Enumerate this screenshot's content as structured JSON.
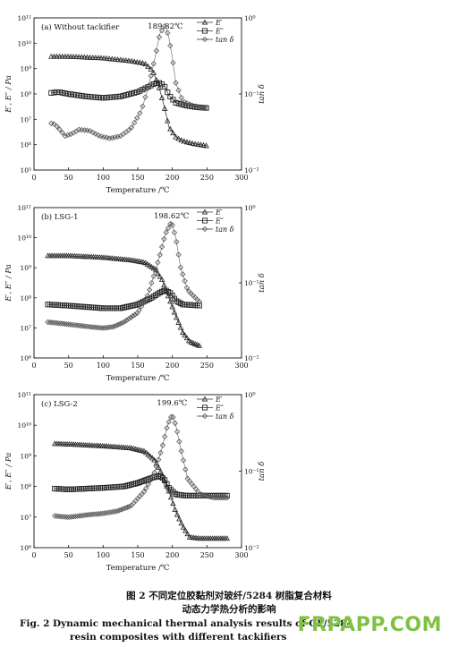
{
  "chart_data": [
    {
      "type": "line",
      "panel_label": "(a) Without tackifier",
      "peak_label": "189.82℃",
      "xlabel": "Temperature /℃",
      "ylabel_left": "E′, E″ / Pa",
      "ylabel_right": "tan δ",
      "xlim": [
        0,
        300
      ],
      "xticks": [
        "0",
        "50",
        "100",
        "150",
        "200",
        "250",
        "300"
      ],
      "ylim_left_exp": [
        5,
        11
      ],
      "yticks_left": [
        "10⁵",
        "10⁶",
        "10⁷",
        "10⁸",
        "10⁹",
        "10¹⁰",
        "10¹¹"
      ],
      "ylim_right_exp": [
        -2,
        0
      ],
      "yticks_right": [
        "10⁻²",
        "10⁻¹",
        "10⁰"
      ],
      "scale": "log",
      "legend": [
        "E′",
        "E″",
        "tan δ"
      ],
      "legend_position": "top-right",
      "series": [
        {
          "name": "E′",
          "marker": "triangle",
          "axis": "left",
          "x": [
            25,
            50,
            100,
            140,
            160,
            172,
            180,
            188,
            195,
            205,
            215,
            230,
            250
          ],
          "y": [
            3000000000.0,
            3000000000.0,
            2600000000.0,
            2000000000.0,
            1600000000.0,
            800000000.0,
            220000000.0,
            35000000.0,
            5000000.0,
            2000000.0,
            1400000.0,
            1100000.0,
            900000.0
          ]
        },
        {
          "name": "E″",
          "marker": "square",
          "axis": "left",
          "x": [
            25,
            35,
            50,
            75,
            100,
            125,
            150,
            165,
            175,
            180,
            188,
            195,
            205,
            220,
            235,
            250
          ],
          "y": [
            110000000.0,
            120000000.0,
            100000000.0,
            80000000.0,
            70000000.0,
            80000000.0,
            120000000.0,
            190000000.0,
            260000000.0,
            280000000.0,
            220000000.0,
            90000000.0,
            45000000.0,
            35000000.0,
            30000000.0,
            28000000.0
          ]
        },
        {
          "name": "tan δ",
          "marker": "diamond",
          "axis": "right",
          "x": [
            25,
            30,
            35,
            45,
            55,
            65,
            80,
            95,
            110,
            125,
            140,
            155,
            165,
            175,
            182,
            189.82,
            195,
            200,
            205,
            215,
            230,
            250
          ],
          "y": [
            0.041,
            0.04,
            0.036,
            0.028,
            0.03,
            0.034,
            0.033,
            0.028,
            0.026,
            0.028,
            0.035,
            0.06,
            0.12,
            0.3,
            0.62,
            0.8,
            0.55,
            0.3,
            0.14,
            0.08,
            0.07,
            0.065
          ]
        }
      ]
    },
    {
      "type": "line",
      "panel_label": "(b) LSG-1",
      "peak_label": "198.62℃",
      "xlabel": "Temperature /℃",
      "ylabel_left": "E′, E″ / Pa",
      "ylabel_right": "tan δ",
      "xlim": [
        0,
        300
      ],
      "xticks": [
        "0",
        "50",
        "100",
        "150",
        "200",
        "250",
        "300"
      ],
      "ylim_left_exp": [
        6,
        11
      ],
      "yticks_left": [
        "10⁶",
        "10⁷",
        "10⁸",
        "10⁹",
        "10¹⁰",
        "10¹¹"
      ],
      "ylim_right_exp": [
        -2,
        0
      ],
      "yticks_right": [
        "10⁻²",
        "10⁻¹",
        "10⁰"
      ],
      "scale": "log",
      "legend": [
        "E′",
        "E″",
        "tan δ"
      ],
      "legend_position": "top-right",
      "series": [
        {
          "name": "E′",
          "marker": "triangle",
          "axis": "left",
          "x": [
            20,
            50,
            100,
            140,
            160,
            175,
            185,
            195,
            205,
            215,
            225,
            240
          ],
          "y": [
            2500000000.0,
            2500000000.0,
            2200000000.0,
            1800000000.0,
            1500000000.0,
            900000000.0,
            400000000.0,
            100000000.0,
            25000000.0,
            7000000.0,
            3500000.0,
            2500000.0
          ]
        },
        {
          "name": "E″",
          "marker": "square",
          "axis": "left",
          "x": [
            20,
            50,
            100,
            125,
            150,
            170,
            182,
            190,
            198,
            205,
            215,
            240
          ],
          "y": [
            60000000.0,
            55000000.0,
            45000000.0,
            45000000.0,
            60000000.0,
            100000000.0,
            150000000.0,
            180000000.0,
            140000000.0,
            80000000.0,
            60000000.0,
            55000000.0
          ]
        },
        {
          "name": "tan δ",
          "marker": "diamond",
          "axis": "right",
          "x": [
            20,
            50,
            80,
            100,
            115,
            130,
            150,
            165,
            180,
            190,
            198.62,
            205,
            212,
            222,
            240
          ],
          "y": [
            0.03,
            0.028,
            0.026,
            0.025,
            0.026,
            0.03,
            0.04,
            0.07,
            0.2,
            0.45,
            0.65,
            0.4,
            0.16,
            0.08,
            0.055
          ]
        }
      ]
    },
    {
      "type": "line",
      "panel_label": "(c) LSG-2",
      "peak_label": "199.6℃",
      "xlabel": "Temperature /℃",
      "ylabel_left": "E′, E″ / Pa",
      "ylabel_right": "tan δ",
      "xlim": [
        0,
        300
      ],
      "xticks": [
        "0",
        "50",
        "100",
        "150",
        "200",
        "250",
        "300"
      ],
      "ylim_left_exp": [
        6,
        11
      ],
      "yticks_left": [
        "10⁶",
        "10⁷",
        "10⁸",
        "10⁹",
        "10¹⁰",
        "10¹¹"
      ],
      "ylim_right_exp": [
        -2,
        0
      ],
      "yticks_right": [
        "10⁻²",
        "10⁻¹",
        "10⁰"
      ],
      "scale": "log",
      "legend": [
        "E′",
        "E″",
        "tan δ"
      ],
      "legend_position": "top-right",
      "series": [
        {
          "name": "E′",
          "marker": "triangle",
          "axis": "left",
          "x": [
            30,
            50,
            100,
            140,
            160,
            175,
            185,
            195,
            205,
            215,
            225,
            240,
            280
          ],
          "y": [
            2500000000.0,
            2400000000.0,
            2100000000.0,
            1800000000.0,
            1400000000.0,
            700000000.0,
            250000000.0,
            70000000.0,
            15000000.0,
            5000000.0,
            2200000.0,
            2000000.0,
            2000000.0
          ]
        },
        {
          "name": "E″",
          "marker": "square",
          "axis": "left",
          "x": [
            30,
            50,
            100,
            130,
            150,
            170,
            180,
            188,
            195,
            205,
            220,
            250,
            280
          ],
          "y": [
            85000000.0,
            80000000.0,
            90000000.0,
            100000000.0,
            130000000.0,
            190000000.0,
            220000000.0,
            180000000.0,
            90000000.0,
            55000000.0,
            50000000.0,
            50000000.0,
            50000000.0
          ]
        },
        {
          "name": "tan δ",
          "marker": "diamond",
          "axis": "right",
          "x": [
            30,
            50,
            80,
            100,
            120,
            140,
            160,
            175,
            185,
            193,
            199.6,
            205,
            212,
            222,
            240,
            260,
            280
          ],
          "y": [
            0.026,
            0.025,
            0.027,
            0.028,
            0.03,
            0.035,
            0.055,
            0.1,
            0.2,
            0.4,
            0.55,
            0.4,
            0.2,
            0.08,
            0.05,
            0.045,
            0.045
          ]
        }
      ]
    }
  ],
  "caption": {
    "zh": "图 2   不同定位胶黏剂对玻纤/5284 树脂复合材料",
    "zh2": "动态力学热分析的影响",
    "en": "Fig. 2   Dynamic mechanical thermal analysis results of GF/5284",
    "en2": "resin composites with different tackifiers"
  },
  "watermark": "FRPAPP.COM"
}
